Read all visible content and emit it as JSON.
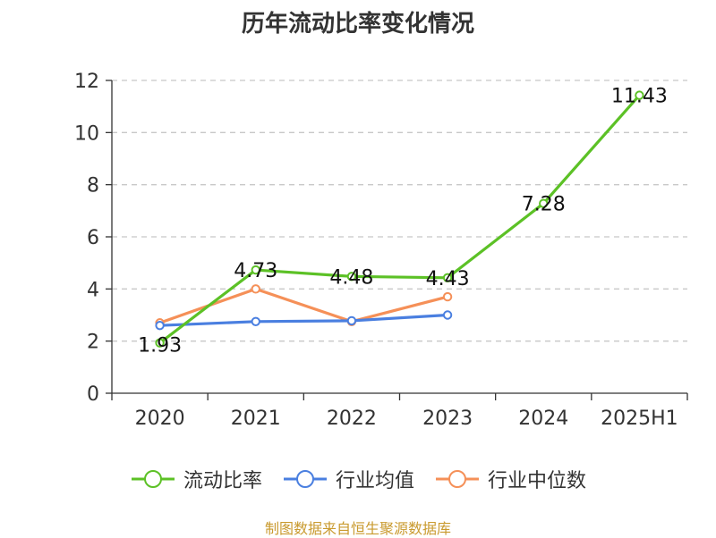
{
  "title": "历年流动比率变化情况",
  "source": "制图数据来自恒生聚源数据库",
  "chart_data": {
    "type": "line",
    "categories": [
      "2020",
      "2021",
      "2022",
      "2023",
      "2024",
      "2025H1"
    ],
    "ylim": [
      0,
      12
    ],
    "yticks": [
      0,
      2,
      4,
      6,
      8,
      10,
      12
    ],
    "grid": true,
    "legend_position": "bottom",
    "series": [
      {
        "name": "流动比率",
        "color": "#5cc126",
        "values": [
          1.93,
          4.73,
          4.48,
          4.43,
          7.28,
          11.43
        ],
        "labels": [
          "1.93",
          "4.73",
          "4.48",
          "4.43",
          "7.28",
          "11.43"
        ]
      },
      {
        "name": "行业均值",
        "color": "#4a7fe0",
        "values": [
          2.6,
          2.75,
          2.78,
          3.0,
          null,
          null
        ]
      },
      {
        "name": "行业中位数",
        "color": "#f59058",
        "values": [
          2.7,
          4.0,
          2.75,
          3.7,
          null,
          null
        ]
      }
    ]
  }
}
